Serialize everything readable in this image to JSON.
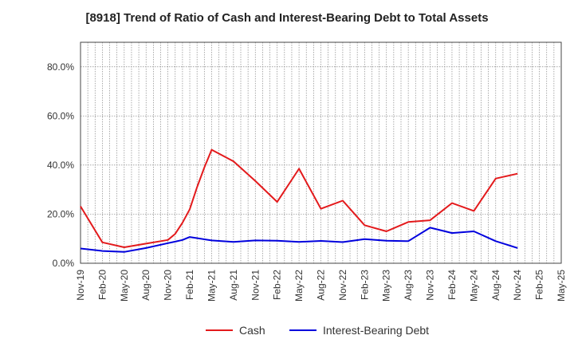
{
  "chart_data": {
    "type": "line",
    "title": "[8918]  Trend of Ratio of Cash and Interest-Bearing Debt to Total Assets",
    "xlabel": "",
    "ylabel": "",
    "ylim": [
      0,
      0.9
    ],
    "yticks": [
      {
        "value": 0.0,
        "label": "0.0%"
      },
      {
        "value": 0.2,
        "label": "20.0%"
      },
      {
        "value": 0.4,
        "label": "40.0%"
      },
      {
        "value": 0.6,
        "label": "60.0%"
      },
      {
        "value": 0.8,
        "label": "80.0%"
      }
    ],
    "x": [
      "Nov-19",
      "Dec-19",
      "Jan-20",
      "Feb-20",
      "Mar-20",
      "Apr-20",
      "May-20",
      "Jun-20",
      "Jul-20",
      "Aug-20",
      "Sep-20",
      "Oct-20",
      "Nov-20",
      "Dec-20",
      "Jan-21",
      "Feb-21",
      "Mar-21",
      "Apr-21",
      "May-21",
      "Jun-21",
      "Jul-21",
      "Aug-21",
      "Sep-21",
      "Oct-21",
      "Nov-21",
      "Dec-21",
      "Jan-22",
      "Feb-22",
      "Mar-22",
      "Apr-22",
      "May-22",
      "Jun-22",
      "Jul-22",
      "Aug-22",
      "Sep-22",
      "Oct-22",
      "Nov-22",
      "Dec-22",
      "Jan-23",
      "Feb-23",
      "Mar-23",
      "Apr-23",
      "May-23",
      "Jun-23",
      "Jul-23",
      "Aug-23",
      "Sep-23",
      "Oct-23",
      "Nov-23",
      "Dec-23",
      "Jan-24",
      "Feb-24",
      "Mar-24",
      "Apr-24",
      "May-24",
      "Jun-24",
      "Jul-24",
      "Aug-24",
      "Sep-24",
      "Oct-24",
      "Nov-24",
      "Dec-24",
      "Jan-25",
      "Feb-25",
      "Mar-25",
      "Apr-25",
      "May-25"
    ],
    "tick_labels": [
      "Nov-19",
      "Feb-20",
      "May-20",
      "Aug-20",
      "Nov-20",
      "Feb-21",
      "May-21",
      "Aug-21",
      "Nov-21",
      "Feb-22",
      "May-22",
      "Aug-22",
      "Nov-22",
      "Feb-23",
      "May-23",
      "Aug-23",
      "Nov-23",
      "Feb-24",
      "May-24",
      "Aug-24",
      "Nov-24",
      "Feb-25",
      "May-25"
    ],
    "grid": true,
    "legend_position": "bottom-center",
    "series": [
      {
        "name": "Cash",
        "color": "#e31a1c",
        "points": [
          [
            "Nov-19",
            0.232
          ],
          [
            "Feb-20",
            0.085
          ],
          [
            "May-20",
            0.065
          ],
          [
            "Aug-20",
            0.08
          ],
          [
            "Nov-20",
            0.095
          ],
          [
            "Dec-20",
            0.12
          ],
          [
            "Jan-21",
            0.165
          ],
          [
            "Feb-21",
            0.22
          ],
          [
            "Mar-21",
            0.31
          ],
          [
            "Apr-21",
            0.39
          ],
          [
            "May-21",
            0.462
          ],
          [
            "Aug-21",
            0.415
          ],
          [
            "Nov-21",
            0.335
          ],
          [
            "Feb-22",
            0.25
          ],
          [
            "May-22",
            0.385
          ],
          [
            "Aug-22",
            0.222
          ],
          [
            "Nov-22",
            0.255
          ],
          [
            "Feb-23",
            0.155
          ],
          [
            "May-23",
            0.13
          ],
          [
            "Aug-23",
            0.168
          ],
          [
            "Nov-23",
            0.175
          ],
          [
            "Feb-24",
            0.245
          ],
          [
            "May-24",
            0.213
          ],
          [
            "Aug-24",
            0.345
          ],
          [
            "Nov-24",
            0.365
          ]
        ]
      },
      {
        "name": "Interest-Bearing Debt",
        "color": "#0000dd",
        "points": [
          [
            "Nov-19",
            0.06
          ],
          [
            "Feb-20",
            0.05
          ],
          [
            "May-20",
            0.046
          ],
          [
            "Aug-20",
            0.062
          ],
          [
            "Nov-20",
            0.082
          ],
          [
            "Dec-20",
            0.088
          ],
          [
            "Jan-21",
            0.095
          ],
          [
            "Feb-21",
            0.107
          ],
          [
            "May-21",
            0.093
          ],
          [
            "Aug-21",
            0.087
          ],
          [
            "Nov-21",
            0.093
          ],
          [
            "Feb-22",
            0.092
          ],
          [
            "May-22",
            0.087
          ],
          [
            "Aug-22",
            0.091
          ],
          [
            "Nov-22",
            0.086
          ],
          [
            "Feb-23",
            0.098
          ],
          [
            "May-23",
            0.092
          ],
          [
            "Aug-23",
            0.09
          ],
          [
            "Nov-23",
            0.145
          ],
          [
            "Feb-24",
            0.123
          ],
          [
            "May-24",
            0.13
          ],
          [
            "Aug-24",
            0.09
          ],
          [
            "Nov-24",
            0.062
          ]
        ]
      }
    ]
  }
}
